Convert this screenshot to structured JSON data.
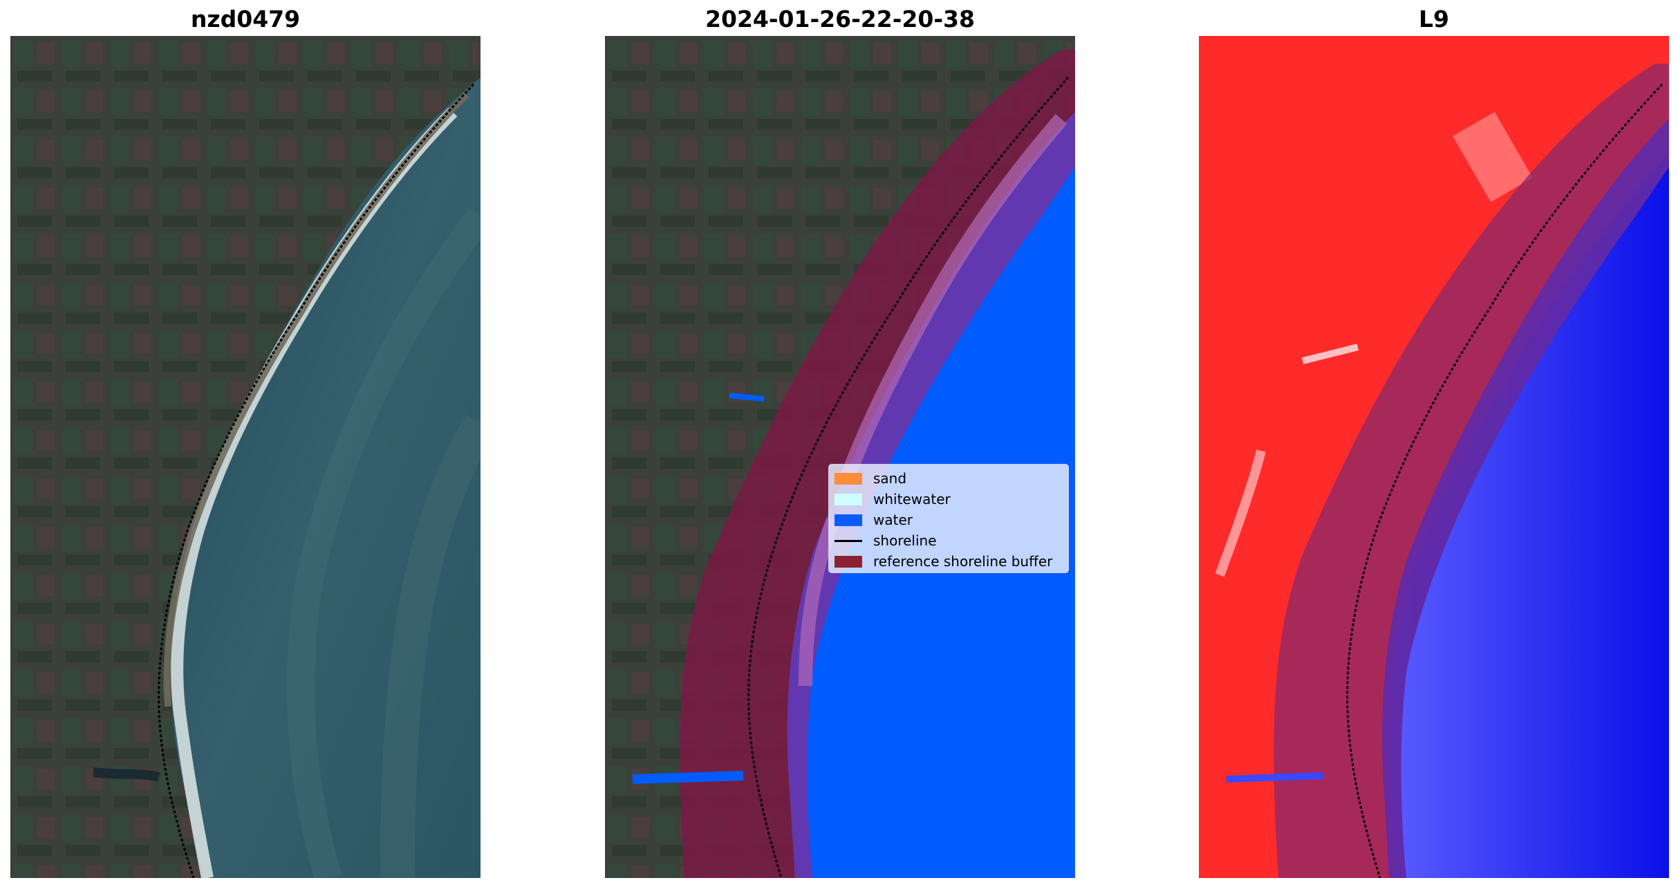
{
  "panels": [
    {
      "title": "nzd0479"
    },
    {
      "title": "2024-01-26-22-20-38"
    },
    {
      "title": "L9"
    }
  ],
  "legend": {
    "items": [
      {
        "label": "sand",
        "color": "#ff8c38",
        "kind": "patch"
      },
      {
        "label": "whitewater",
        "color": "#ccffff",
        "kind": "patch"
      },
      {
        "label": "water",
        "color": "#0a5cff",
        "kind": "patch"
      },
      {
        "label": "shoreline",
        "color": "#000000",
        "kind": "line"
      },
      {
        "label": "reference shoreline buffer",
        "color": "#8b2232",
        "kind": "patch"
      }
    ]
  },
  "colors": {
    "land": "#3a4138",
    "ocean": "#2f5666",
    "class_water": "#005cff",
    "buffer": "#7a1a44",
    "index_land": "#ff2020",
    "index_water": "#1010ee"
  }
}
